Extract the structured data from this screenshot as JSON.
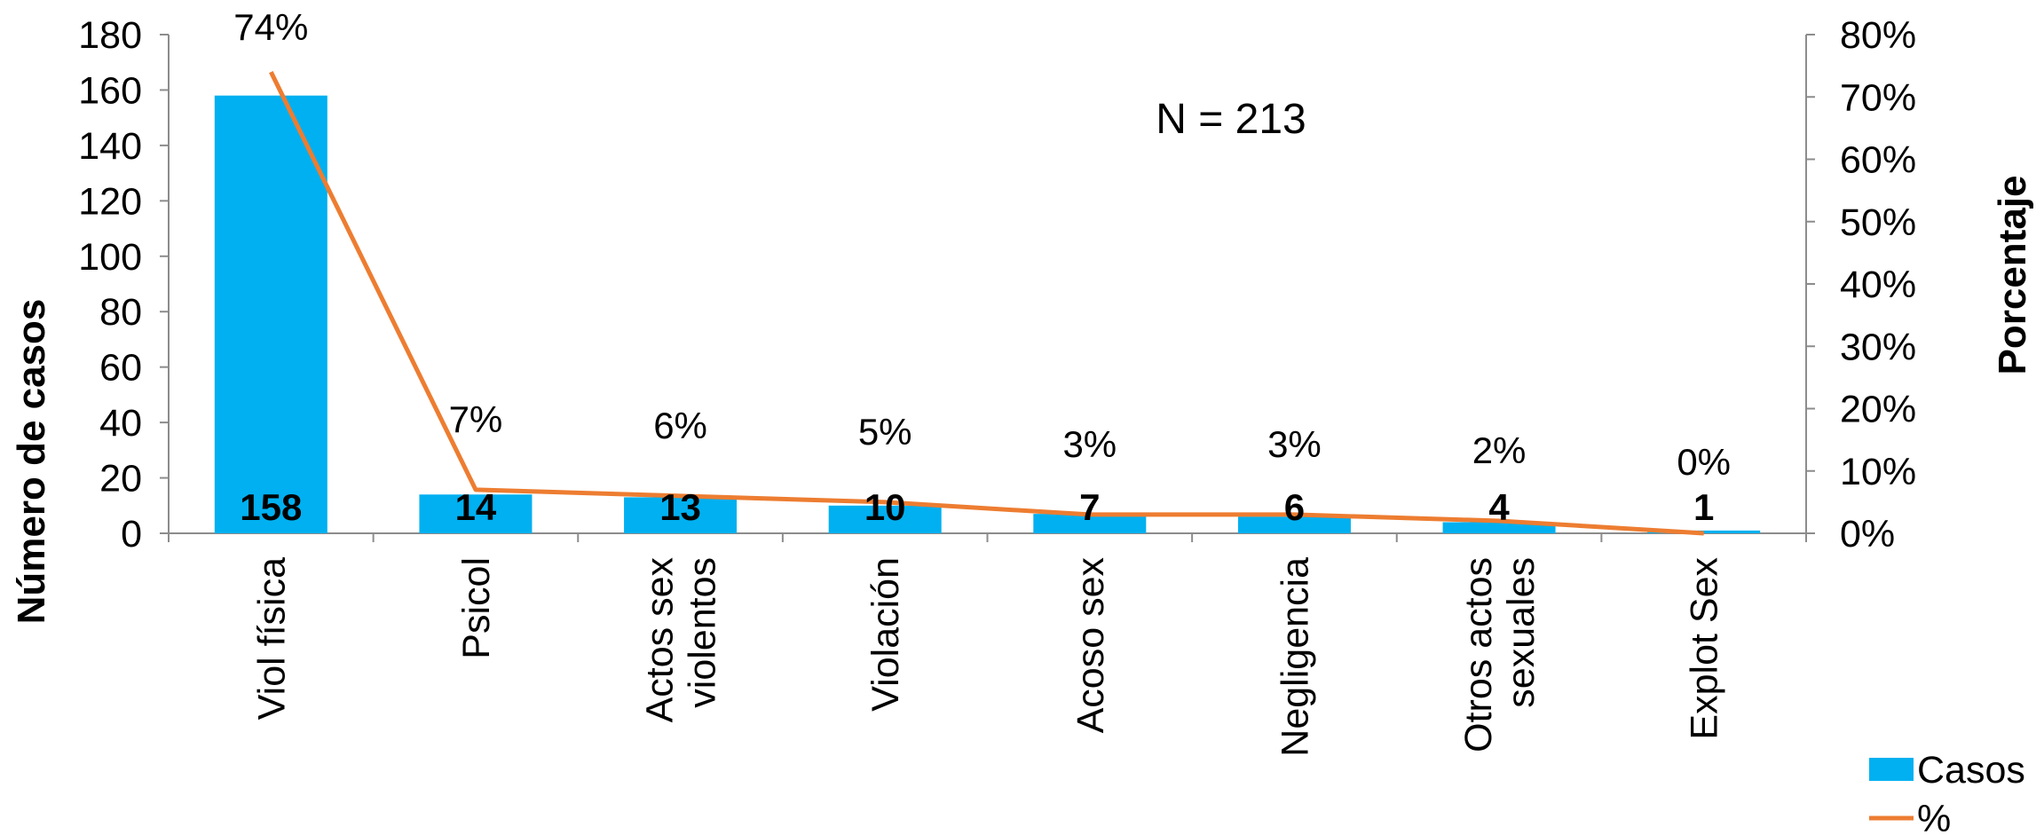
{
  "chart_data": {
    "type": "bar",
    "categories": [
      [
        "Viol física"
      ],
      [
        "Psicol"
      ],
      [
        "Actos sex",
        "violentos"
      ],
      [
        "Violación"
      ],
      [
        "Acoso sex"
      ],
      [
        "Negligencia"
      ],
      [
        "Otros actos",
        "sexuales"
      ],
      [
        "Explot Sex"
      ]
    ],
    "series": [
      {
        "name": "Casos",
        "type": "bar",
        "axis": "left",
        "color": "#00b0f0",
        "values": [
          158,
          14,
          13,
          10,
          7,
          6,
          4,
          1
        ],
        "labels": [
          "158",
          "14",
          "13",
          "10",
          "7",
          "6",
          "4",
          "1"
        ]
      },
      {
        "name": "%",
        "type": "line",
        "axis": "right",
        "color": "#ed7d31",
        "values": [
          74,
          7,
          6,
          5,
          3,
          3,
          2,
          0
        ],
        "labels": [
          "74%",
          "7%",
          "6%",
          "5%",
          "3%",
          "3%",
          "2%",
          "0%"
        ]
      }
    ],
    "ylabel": "Número de casos",
    "y2label": "Porcentaje",
    "ylim": [
      0,
      180
    ],
    "y2lim": [
      0,
      80
    ],
    "yticks": [
      "0",
      "20",
      "40",
      "60",
      "80",
      "100",
      "120",
      "140",
      "160",
      "180"
    ],
    "y2ticks": [
      "0%",
      "10%",
      "20%",
      "30%",
      "40%",
      "50%",
      "60%",
      "70%",
      "80%"
    ],
    "annotation": "N = 213",
    "legend_position": "bottom-right",
    "grid": false
  }
}
